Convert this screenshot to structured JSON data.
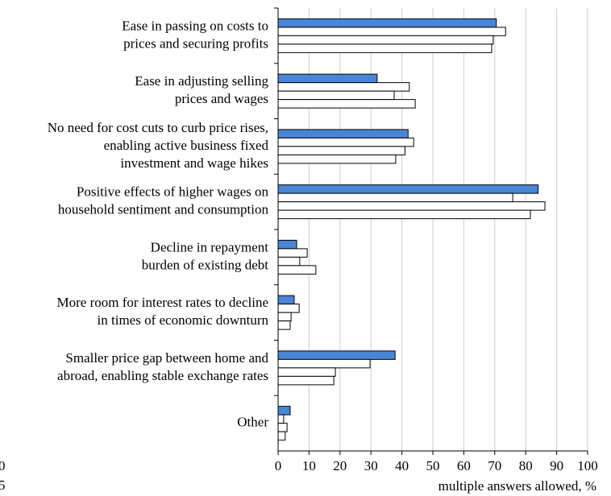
{
  "chart_data": {
    "type": "bar",
    "orientation": "horizontal",
    "categories": [
      [
        "Ease in passing on costs to",
        "prices and securing profits"
      ],
      [
        "Ease in adjusting selling",
        "prices and wages"
      ],
      [
        "No need for cost cuts to curb price rises,",
        "enabling active business fixed",
        "investment and wage hikes"
      ],
      [
        "Positive effects of higher wages on",
        "household sentiment and consumption"
      ],
      [
        "Decline in repayment",
        "burden of existing debt"
      ],
      [
        "More room for interest rates to decline",
        "in times of economic downturn"
      ],
      [
        "Smaller price gap between home and",
        "abroad, enabling stable exchange rates"
      ],
      [
        "Other"
      ]
    ],
    "series": [
      {
        "color": "#4a86d8",
        "values": [
          70.5,
          32,
          42,
          84,
          6,
          5.2,
          37.8,
          3.9
        ]
      },
      {
        "color": "#ffffff",
        "values": [
          73.5,
          42.4,
          43.8,
          75.8,
          9.4,
          6.8,
          29.7,
          1.8
        ]
      },
      {
        "color": "#ffffff",
        "values": [
          69.5,
          37.5,
          41,
          86.2,
          7,
          4.2,
          18.5,
          2.9
        ]
      },
      {
        "color": "#ffffff",
        "values": [
          69,
          44.3,
          38,
          81.5,
          12.2,
          3.9,
          18,
          2.3
        ]
      }
    ],
    "xlim": [
      0,
      100
    ],
    "xticks": [
      0,
      10,
      20,
      30,
      40,
      50,
      60,
      70,
      80,
      90,
      100
    ],
    "xlabel": "multiple answers allowed, %",
    "grid": true,
    "annotations": [
      "0",
      "5"
    ]
  }
}
